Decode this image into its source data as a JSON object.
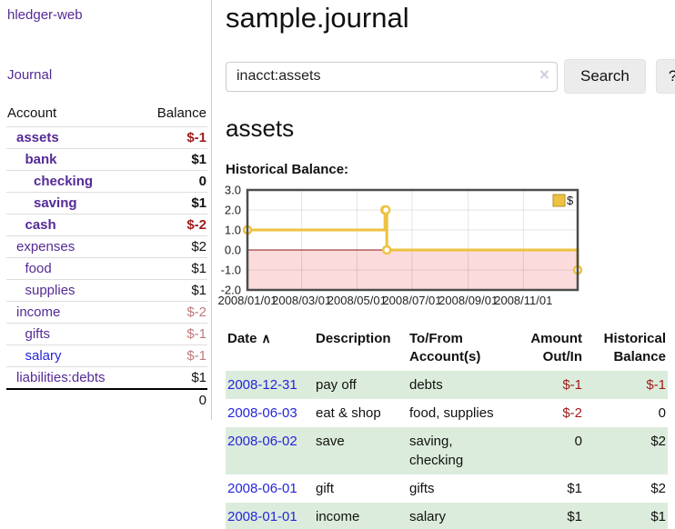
{
  "app": {
    "brand": "hledger-web"
  },
  "colors": {
    "link_purple": "#552a96",
    "link_blue": "#2525dc",
    "negative_strong": "#9e1a1a",
    "negative_muted": "#bd7b7b",
    "row_green": "#dcecdc",
    "chart_line": "#edc240",
    "chart_negative_fill": "#fbdbdb",
    "chart_zero_line": "#8b1a1a"
  },
  "sidebar": {
    "nav_journal": "Journal",
    "accounts_table": {
      "col_account": "Account",
      "col_balance": "Balance",
      "rows": [
        {
          "name": "assets",
          "indent": 1,
          "bold": true,
          "link_color": "purple",
          "balance": "$-1",
          "balance_style": "neg-strong"
        },
        {
          "name": "bank",
          "indent": 2,
          "bold": true,
          "link_color": "purple",
          "balance": "$1",
          "balance_style": "pos"
        },
        {
          "name": "checking",
          "indent": 3,
          "bold": true,
          "link_color": "purple",
          "balance": "0",
          "balance_style": "pos"
        },
        {
          "name": "saving",
          "indent": 3,
          "bold": true,
          "link_color": "purple",
          "balance": "$1",
          "balance_style": "pos"
        },
        {
          "name": "cash",
          "indent": 2,
          "bold": true,
          "link_color": "purple",
          "balance": "$-2",
          "balance_style": "neg-strong"
        },
        {
          "name": "expenses",
          "indent": 1,
          "bold": false,
          "link_color": "purple",
          "balance": "$2",
          "balance_style": "pos"
        },
        {
          "name": "food",
          "indent": 2,
          "bold": false,
          "link_color": "purple",
          "balance": "$1",
          "balance_style": "pos"
        },
        {
          "name": "supplies",
          "indent": 2,
          "bold": false,
          "link_color": "purple",
          "balance": "$1",
          "balance_style": "pos"
        },
        {
          "name": "income",
          "indent": 1,
          "bold": false,
          "link_color": "purple",
          "balance": "$-2",
          "balance_style": "neg-muted"
        },
        {
          "name": "gifts",
          "indent": 2,
          "bold": false,
          "link_color": "purple",
          "balance": "$-1",
          "balance_style": "neg-muted"
        },
        {
          "name": "salary",
          "indent": 2,
          "bold": false,
          "link_color": "blue",
          "balance": "$-1",
          "balance_style": "neg-muted"
        },
        {
          "name": "liabilities:debts",
          "indent": 1,
          "bold": false,
          "link_color": "purple",
          "balance": "$1",
          "balance_style": "pos"
        }
      ],
      "total": "0"
    }
  },
  "header": {
    "title": "sample.journal"
  },
  "search": {
    "value": "inacct:assets",
    "clear_icon": "×",
    "button_label": "Search",
    "help_label": "?"
  },
  "report": {
    "heading": "assets",
    "chart_title": "Historical Balance:"
  },
  "chart_data": {
    "type": "line",
    "step": true,
    "title": "Historical Balance",
    "series": [
      {
        "name": "$",
        "color": "#edc240",
        "points": [
          [
            "2008/01/01",
            1
          ],
          [
            "2008/06/01",
            2
          ],
          [
            "2008/06/02",
            2
          ],
          [
            "2008/06/03",
            0
          ],
          [
            "2008/12/31",
            -1
          ]
        ]
      }
    ],
    "x_range": [
      "2008/01/01",
      "2008/12/31"
    ],
    "x_ticks": [
      "2008/01/01",
      "2008/03/01",
      "2008/05/01",
      "2008/07/01",
      "2008/09/01",
      "2008/11/01"
    ],
    "y_ticks": [
      3.0,
      2.0,
      1.0,
      0.0,
      -1.0,
      -2.0
    ],
    "ylim": [
      -2,
      3
    ],
    "legend": "$",
    "legend_position": "top-right",
    "grid": true,
    "negative_region_color": "#fbdbdb",
    "zero_line_color": "#8b1a1a"
  },
  "register": {
    "headers": {
      "date": "Date",
      "sort_icon": "∧",
      "description": "Description",
      "accounts": "To/From Account(s)",
      "amount": "Amount Out/In",
      "balance": "Historical Balance"
    },
    "rows": [
      {
        "date": "2008-12-31",
        "description": "pay off",
        "accounts": "debts",
        "amount": "$-1",
        "amount_neg": true,
        "balance": "$-1",
        "balance_neg": true
      },
      {
        "date": "2008-06-03",
        "description": "eat & shop",
        "accounts": "food, supplies",
        "amount": "$-2",
        "amount_neg": true,
        "balance": "0",
        "balance_neg": false
      },
      {
        "date": "2008-06-02",
        "description": "save",
        "accounts": "saving, checking",
        "amount": "0",
        "amount_neg": false,
        "balance": "$2",
        "balance_neg": false
      },
      {
        "date": "2008-06-01",
        "description": "gift",
        "accounts": "gifts",
        "amount": "$1",
        "amount_neg": false,
        "balance": "$2",
        "balance_neg": false
      },
      {
        "date": "2008-01-01",
        "description": "income",
        "accounts": "salary",
        "amount": "$1",
        "amount_neg": false,
        "balance": "$1",
        "balance_neg": false
      }
    ]
  }
}
